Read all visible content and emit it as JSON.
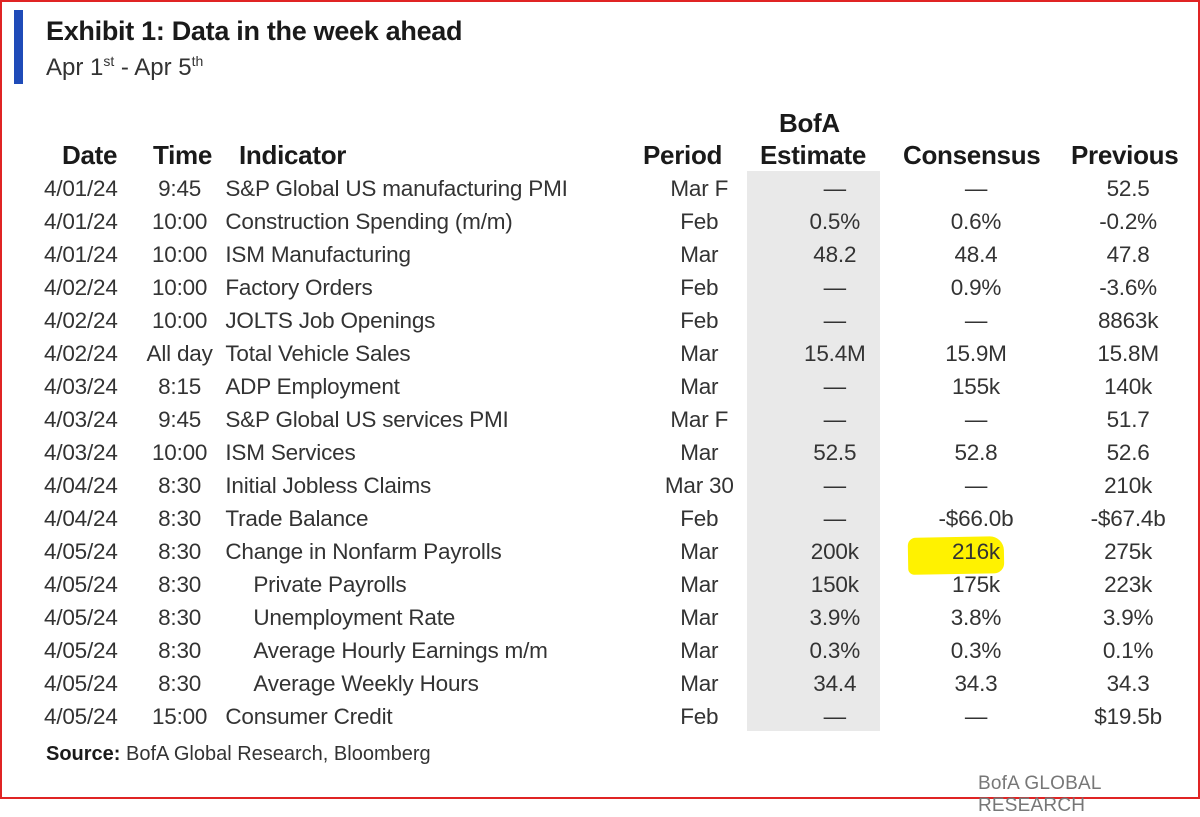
{
  "title": "Exhibit 1: Data in the week ahead",
  "subtitle": {
    "start": "Apr 1",
    "start_sup": "st",
    "sep": " - Apr 5",
    "end_sup": "th"
  },
  "headers": {
    "date": "Date",
    "time": "Time",
    "indicator": "Indicator",
    "period": "Period",
    "estimate_line1": "BofA",
    "estimate_line2": "Estimate",
    "consensus": "Consensus",
    "previous": "Previous"
  },
  "rows": [
    {
      "date": "4/01/24",
      "time": "9:45",
      "indicator": "S&P Global US manufacturing PMI",
      "sub": false,
      "period": "Mar F",
      "estimate": "—",
      "consensus": "—",
      "previous": "52.5"
    },
    {
      "date": "4/01/24",
      "time": "10:00",
      "indicator": "Construction Spending (m/m)",
      "sub": false,
      "period": "Feb",
      "estimate": "0.5%",
      "consensus": "0.6%",
      "previous": "-0.2%"
    },
    {
      "date": "4/01/24",
      "time": "10:00",
      "indicator": "ISM Manufacturing",
      "sub": false,
      "period": "Mar",
      "estimate": "48.2",
      "consensus": "48.4",
      "previous": "47.8"
    },
    {
      "date": "4/02/24",
      "time": "10:00",
      "indicator": "Factory Orders",
      "sub": false,
      "period": "Feb",
      "estimate": "—",
      "consensus": "0.9%",
      "previous": "-3.6%"
    },
    {
      "date": "4/02/24",
      "time": "10:00",
      "indicator": "JOLTS Job Openings",
      "sub": false,
      "period": "Feb",
      "estimate": "—",
      "consensus": "—",
      "previous": "8863k"
    },
    {
      "date": "4/02/24",
      "time": "All day",
      "indicator": "Total Vehicle Sales",
      "sub": false,
      "period": "Mar",
      "estimate": "15.4M",
      "consensus": "15.9M",
      "previous": "15.8M"
    },
    {
      "date": "4/03/24",
      "time": "8:15",
      "indicator": "ADP Employment",
      "sub": false,
      "period": "Mar",
      "estimate": "—",
      "consensus": "155k",
      "previous": "140k"
    },
    {
      "date": "4/03/24",
      "time": "9:45",
      "indicator": "S&P Global US services PMI",
      "sub": false,
      "period": "Mar F",
      "estimate": "—",
      "consensus": "—",
      "previous": "51.7"
    },
    {
      "date": "4/03/24",
      "time": "10:00",
      "indicator": "ISM Services",
      "sub": false,
      "period": "Mar",
      "estimate": "52.5",
      "consensus": "52.8",
      "previous": "52.6"
    },
    {
      "date": "4/04/24",
      "time": "8:30",
      "indicator": "Initial Jobless Claims",
      "sub": false,
      "period": "Mar 30",
      "estimate": "—",
      "consensus": "—",
      "previous": "210k"
    },
    {
      "date": "4/04/24",
      "time": "8:30",
      "indicator": "Trade Balance",
      "sub": false,
      "period": "Feb",
      "estimate": "—",
      "consensus": "-$66.0b",
      "previous": "-$67.4b"
    },
    {
      "date": "4/05/24",
      "time": "8:30",
      "indicator": "Change in Nonfarm Payrolls",
      "sub": false,
      "period": "Mar",
      "estimate": "200k",
      "consensus": "216k",
      "previous": "275k"
    },
    {
      "date": "4/05/24",
      "time": "8:30",
      "indicator": "Private Payrolls",
      "sub": true,
      "period": "Mar",
      "estimate": "150k",
      "consensus": "175k",
      "previous": "223k"
    },
    {
      "date": "4/05/24",
      "time": "8:30",
      "indicator": "Unemployment Rate",
      "sub": true,
      "period": "Mar",
      "estimate": "3.9%",
      "consensus": "3.8%",
      "previous": "3.9%"
    },
    {
      "date": "4/05/24",
      "time": "8:30",
      "indicator": "Average Hourly Earnings m/m",
      "sub": true,
      "period": "Mar",
      "estimate": "0.3%",
      "consensus": "0.3%",
      "previous": "0.1%"
    },
    {
      "date": "4/05/24",
      "time": "8:30",
      "indicator": "Average Weekly Hours",
      "sub": true,
      "period": "Mar",
      "estimate": "34.4",
      "consensus": "34.3",
      "previous": "34.3"
    },
    {
      "date": "4/05/24",
      "time": "15:00",
      "indicator": "Consumer Credit",
      "sub": false,
      "period": "Feb",
      "estimate": "—",
      "consensus": "—",
      "previous": "$19.5b"
    }
  ],
  "source": {
    "label": "Source:",
    "text": " BofA Global Research, Bloomberg"
  },
  "brand": "BofA GLOBAL RESEARCH",
  "colors": {
    "title_bar": "#1f4bb8",
    "frame": "#e02424",
    "estimate_column_bg": "#e9e9e9",
    "highlight": "#fff200"
  }
}
